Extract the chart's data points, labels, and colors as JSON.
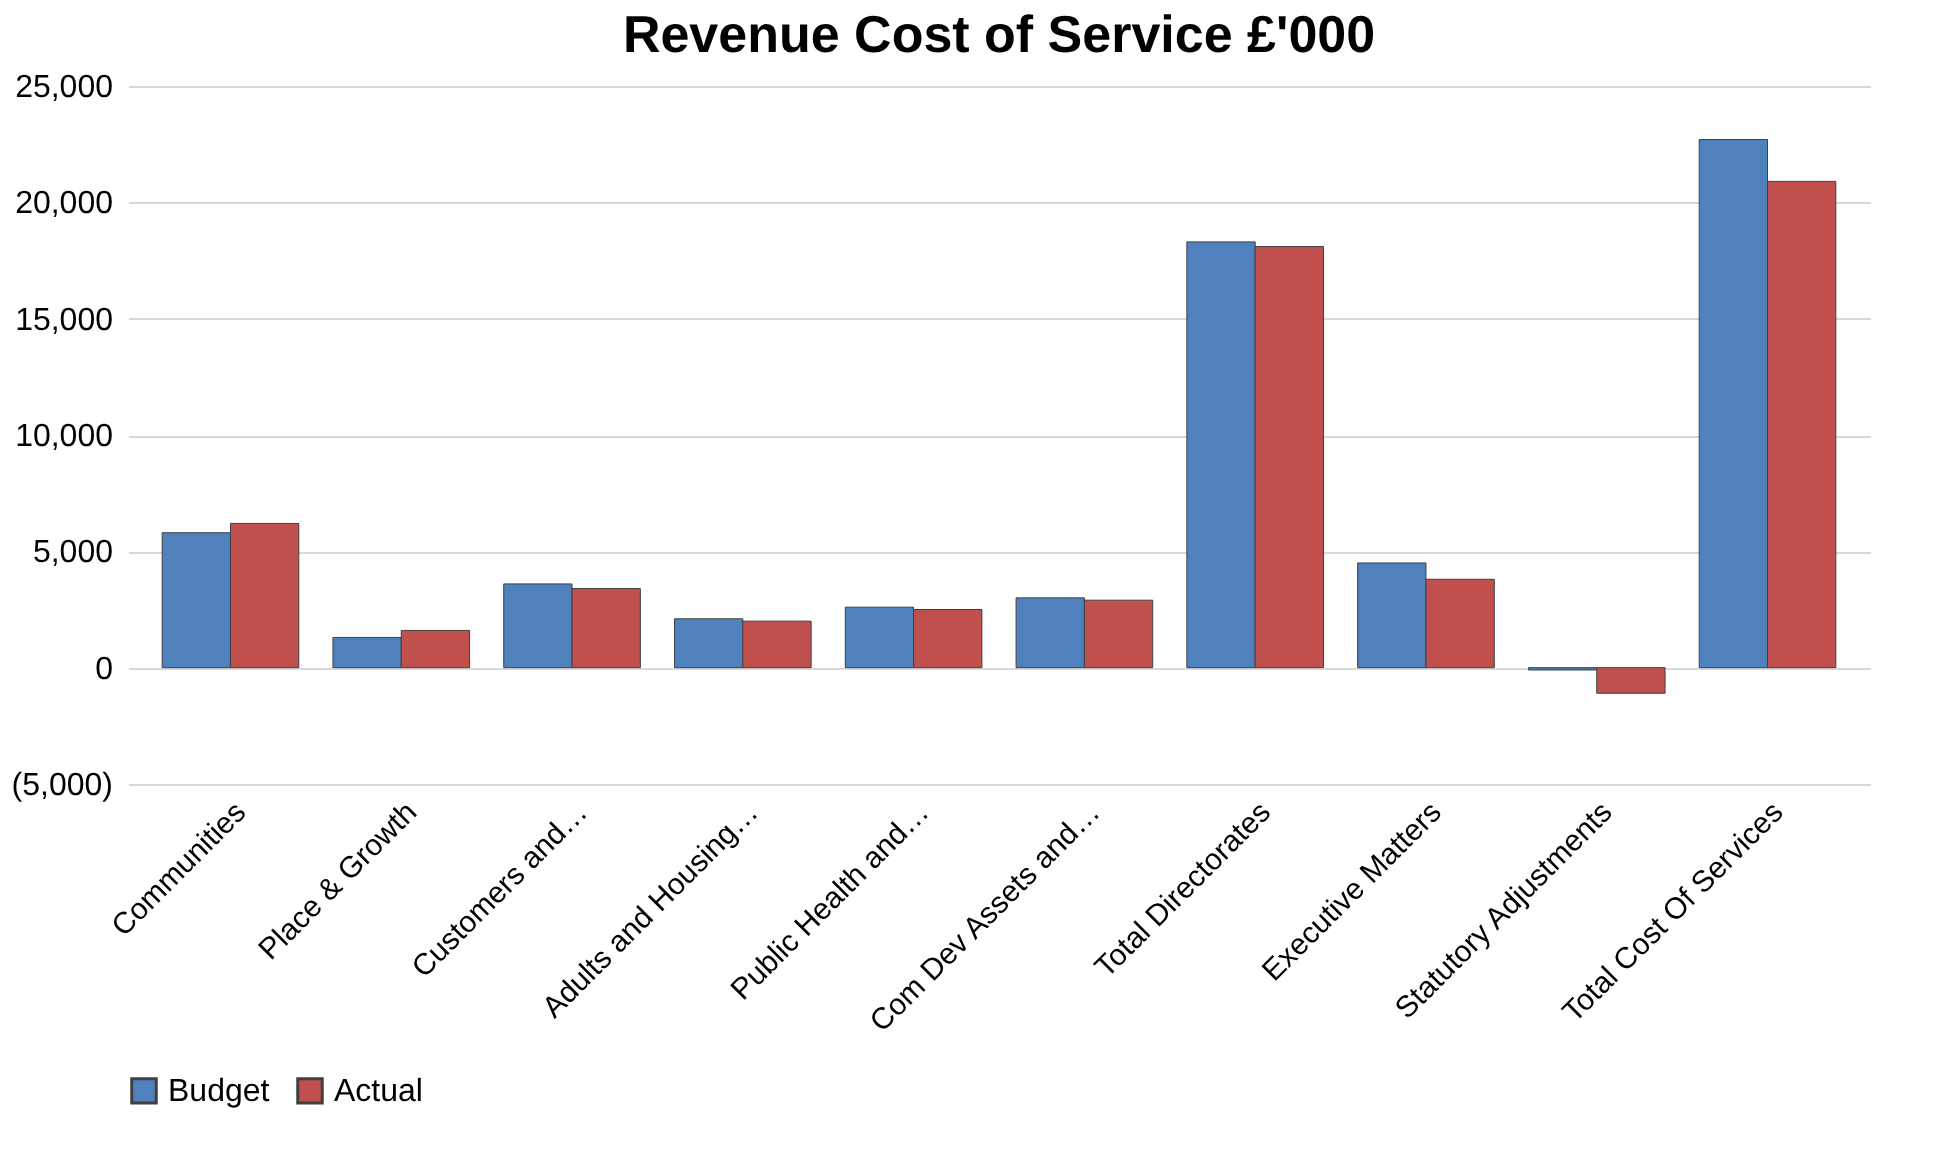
{
  "chart_data": {
    "type": "bar",
    "title": "Revenue Cost of Service £'000",
    "categories": [
      "Communities",
      "Place & Growth",
      "Customers and…",
      "Adults and Housing…",
      "Public Health and…",
      "Com Dev Assets and…",
      "Total Directorates",
      "Executive Matters",
      "Statutory Adjustments",
      "Total Cost Of Services"
    ],
    "series": [
      {
        "name": "Budget",
        "color": "#4f81bd",
        "values": [
          5800,
          1300,
          3600,
          2100,
          2600,
          3000,
          18300,
          4500,
          -100,
          22700
        ]
      },
      {
        "name": "Actual",
        "color": "#c0504d",
        "values": [
          6200,
          1600,
          3400,
          2000,
          2500,
          2900,
          18100,
          3800,
          -1100,
          20900
        ]
      }
    ],
    "ylim": [
      -5000,
      25000
    ],
    "yticks": [
      {
        "value": -5000,
        "label": "(5,000)"
      },
      0,
      {
        "value": 5000,
        "label": "5,000"
      },
      {
        "value": 10000,
        "label": "10,000"
      },
      {
        "value": 15000,
        "label": "15,000"
      },
      {
        "value": 20000,
        "label": "20,000"
      },
      {
        "value": 25000,
        "label": "25,000"
      }
    ],
    "grid": "y",
    "legend": "bottom"
  }
}
